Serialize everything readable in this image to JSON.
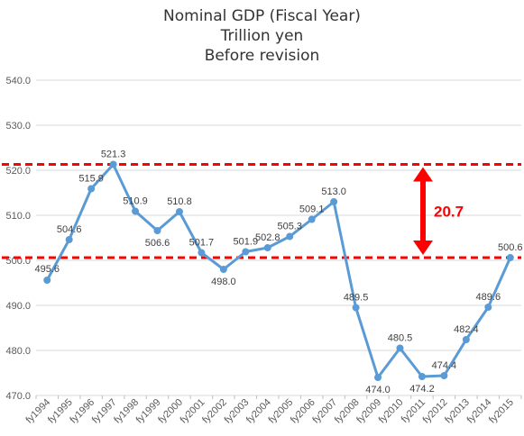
{
  "chart_data": {
    "type": "line",
    "title": [
      "Nominal GDP (Fiscal Year)",
      "Trillion yen",
      "Before revision"
    ],
    "categories": [
      "fy1994",
      "fy1995",
      "fy1996",
      "fy1997",
      "fy1998",
      "fy1999",
      "fy2000",
      "fy2001",
      "fy2002",
      "fy2003",
      "fy2004",
      "fy2005",
      "fy2006",
      "fy2007",
      "fy2008",
      "fy2009",
      "fy2010",
      "fy2011",
      "fy2012",
      "fy2013",
      "fy2014",
      "fy2015"
    ],
    "values": [
      495.6,
      504.6,
      515.9,
      521.3,
      510.9,
      506.6,
      510.8,
      501.7,
      498.0,
      501.9,
      502.8,
      505.3,
      509.1,
      513.0,
      489.5,
      474.0,
      480.5,
      474.2,
      474.4,
      482.4,
      489.6,
      500.6
    ],
    "value_labels": [
      "495.6",
      "504.6",
      "515.9",
      "521.3",
      "510.9",
      "506.6",
      "510.8",
      "501.7",
      "498.0",
      "501.9",
      "502.8",
      "505.3",
      "509.1",
      "513.0",
      "489.5",
      "474.0",
      "480.5",
      "474.2",
      "474.4",
      "482.4",
      "489.6",
      "500.6"
    ],
    "ylim": [
      470,
      540
    ],
    "yticks": [
      "470.0",
      "480.0",
      "490.0",
      "500.0",
      "510.0",
      "520.0",
      "530.0",
      "540.0"
    ],
    "grid": true,
    "legend": "none",
    "line_color": "#5b9bd5",
    "reference_lines": [
      {
        "value": 521.3,
        "color": "#ff0000",
        "style": "dashed"
      },
      {
        "value": 500.6,
        "color": "#ff0000",
        "style": "dashed"
      }
    ],
    "annotation": {
      "text": "20.7",
      "color": "#ff0000",
      "from": 500.6,
      "to": 521.3
    }
  }
}
